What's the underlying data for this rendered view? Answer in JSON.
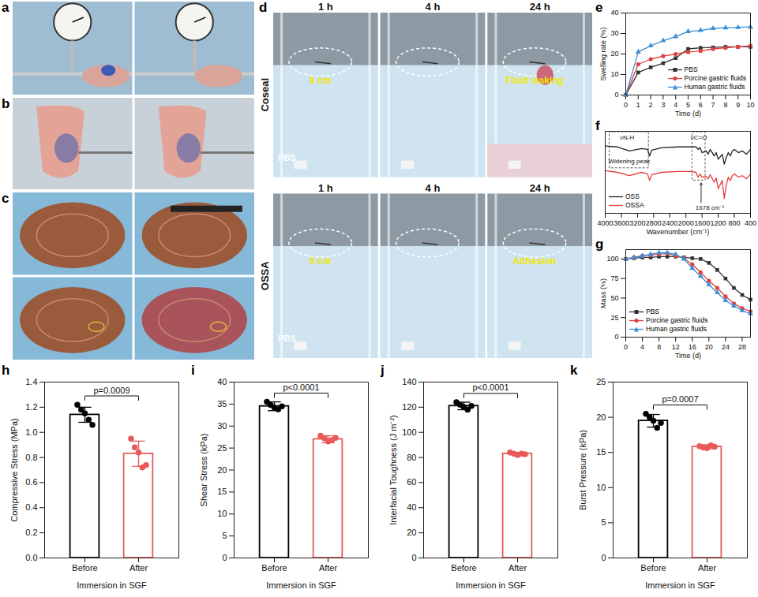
{
  "chart_data": [
    {
      "panel": "e",
      "type": "line",
      "x_label": "Time (d)",
      "y_label": "Swelling rate (%)",
      "x": [
        0,
        1,
        2,
        3,
        4,
        5,
        6,
        7,
        8,
        9,
        10
      ],
      "series": [
        {
          "name": "PBS",
          "color": "#333333",
          "marker": "square",
          "values": [
            0,
            11,
            13.5,
            15.5,
            18,
            22.5,
            23,
            23.2,
            23.5,
            23.5,
            23.5
          ]
        },
        {
          "name": "Porcine gastric fluids",
          "color": "#e0403f",
          "marker": "circle",
          "values": [
            0,
            15,
            17.5,
            19,
            20,
            21,
            21.5,
            22.5,
            23,
            23.5,
            24
          ]
        },
        {
          "name": "Human gastric fluids",
          "color": "#3d8fd6",
          "marker": "triangle",
          "values": [
            0,
            21,
            24,
            26.5,
            28.5,
            31,
            31.5,
            32.5,
            32.8,
            33,
            33.2
          ]
        }
      ],
      "xlim": [
        0,
        10
      ],
      "xticks": [
        0,
        1,
        2,
        3,
        4,
        5,
        6,
        7,
        8,
        9,
        10
      ],
      "ylim": [
        0,
        40
      ],
      "yticks": [
        0,
        10,
        20,
        30,
        40
      ],
      "legend": "bottom-right"
    },
    {
      "panel": "f",
      "type": "line",
      "x_label": "Wavenumber (cm⁻¹)",
      "x": [
        4000,
        3700,
        3400,
        3100,
        2950,
        2900,
        2850,
        2600,
        2200,
        1900,
        1750,
        1700,
        1650,
        1600,
        1500,
        1450,
        1400,
        1300,
        1250,
        1200,
        1100,
        1050,
        1000,
        950,
        900,
        850,
        800,
        700,
        600,
        500,
        400
      ],
      "series": [
        {
          "name": "OSS",
          "color": "#222222",
          "values": [
            82,
            81,
            76,
            79,
            78,
            70,
            77,
            80,
            81,
            81,
            81,
            78,
            80,
            74,
            76,
            72,
            78,
            70,
            74,
            66,
            72,
            60,
            68,
            74,
            70,
            76,
            78,
            74,
            76,
            72,
            78
          ]
        },
        {
          "name": "OSSA",
          "color": "#e0403f",
          "values": [
            52,
            50,
            46,
            50,
            48,
            40,
            47,
            50,
            51,
            51,
            50,
            44,
            48,
            44,
            45,
            42,
            47,
            38,
            43,
            30,
            40,
            18,
            35,
            44,
            40,
            46,
            48,
            44,
            46,
            42,
            48
          ]
        }
      ],
      "annotations": [
        "νN-H",
        "Widening peak",
        "νC=O",
        "1678 cm⁻¹"
      ],
      "xlim": [
        4000,
        400
      ],
      "xticks": [
        4000,
        3600,
        3200,
        2800,
        2400,
        2000,
        1600,
        1200,
        800,
        400
      ],
      "ylim": [
        0,
        100
      ],
      "tick_labels": "x",
      "legend": "bottom-left"
    },
    {
      "panel": "g",
      "type": "line",
      "x_label": "Time (d)",
      "y_label": "Mass (%)",
      "x": [
        0,
        2,
        4,
        6,
        8,
        10,
        12,
        14,
        16,
        18,
        20,
        22,
        24,
        26,
        28,
        30
      ],
      "series": [
        {
          "name": "PBS",
          "color": "#333333",
          "marker": "square",
          "values": [
            100,
            101,
            102,
            102,
            103,
            103,
            103,
            102,
            101,
            100,
            95,
            86,
            75,
            63,
            54,
            48
          ]
        },
        {
          "name": "Porcine gastric fluids",
          "color": "#e0403f",
          "marker": "circle",
          "values": [
            100,
            102,
            104,
            105,
            106,
            107,
            104,
            101,
            93,
            83,
            72,
            63,
            52,
            43,
            37,
            33
          ]
        },
        {
          "name": "Human gastric fluids",
          "color": "#3d8fd6",
          "marker": "triangle",
          "values": [
            100,
            102,
            104,
            106,
            108,
            108,
            106,
            100,
            88,
            78,
            67,
            57,
            47,
            40,
            34,
            30
          ]
        }
      ],
      "xlim": [
        0,
        30
      ],
      "xticks": [
        0,
        4,
        8,
        12,
        16,
        20,
        24,
        28
      ],
      "ylim": [
        0,
        112
      ],
      "yticks": [
        0,
        25,
        50,
        75,
        100
      ],
      "legend": "bottom-left"
    },
    {
      "panel": "h",
      "type": "bar",
      "x_label": "Immersion in SGF",
      "y_label": "Compressive Stress (MPa)",
      "categories": [
        "Before",
        "After"
      ],
      "values": [
        1.14,
        0.83
      ],
      "errors": [
        0.06,
        0.1
      ],
      "points": [
        [
          1.22,
          1.18,
          1.15,
          1.1,
          1.06
        ],
        [
          0.95,
          0.88,
          0.84,
          0.72,
          0.74
        ]
      ],
      "colors": [
        "#000000",
        "#e8595a"
      ],
      "p_value": "p=0.0009",
      "ylim": [
        0,
        1.4
      ],
      "yticks": [
        {
          "value": 0,
          "label": "0.0"
        },
        0.2,
        0.4,
        0.6,
        0.8,
        {
          "value": 1,
          "label": "1.0"
        },
        1.2,
        1.4
      ]
    },
    {
      "panel": "i",
      "type": "bar",
      "x_label": "Immersion in SGF",
      "y_label": "Shear Stress (kPa)",
      "categories": [
        "Before",
        "After"
      ],
      "values": [
        34.5,
        27
      ],
      "errors": [
        1,
        0.8
      ],
      "points": [
        [
          35.5,
          34.8,
          34.2,
          33.8,
          34.5
        ],
        [
          27.8,
          27.2,
          26.5,
          26.8,
          27.3
        ]
      ],
      "colors": [
        "#000000",
        "#e8595a"
      ],
      "p_value": "p<0.0001",
      "ylim": [
        0,
        40
      ],
      "yticks": [
        0,
        5,
        10,
        15,
        20,
        25,
        30,
        35,
        40
      ]
    },
    {
      "panel": "j",
      "type": "bar",
      "x_label": "Immersion in SGF",
      "y_label": "Interfacial Toughness (J m⁻²)",
      "categories": [
        "Before",
        "After"
      ],
      "values": [
        121,
        83
      ],
      "errors": [
        3,
        1
      ],
      "points": [
        [
          124,
          122,
          120,
          118,
          121
        ],
        [
          84,
          83,
          82,
          83,
          82.5
        ]
      ],
      "colors": [
        "#000000",
        "#e8595a"
      ],
      "p_value": "p<0.0001",
      "ylim": [
        0,
        140
      ],
      "yticks": [
        0,
        20,
        40,
        60,
        80,
        100,
        120,
        140
      ]
    },
    {
      "panel": "k",
      "type": "bar",
      "x_label": "Immersion in SGF",
      "y_label": "Burst Pressure (kPa)",
      "categories": [
        "Before",
        "After"
      ],
      "values": [
        19.5,
        15.8
      ],
      "errors": [
        0.9,
        0.3
      ],
      "points": [
        [
          20.5,
          20,
          19.5,
          18.5,
          19.2
        ],
        [
          15.9,
          15.7,
          15.6,
          16,
          15.8
        ]
      ],
      "colors": [
        "#000000",
        "#e8595a"
      ],
      "p_value": "p=0.0007",
      "ylim": [
        0,
        25
      ],
      "yticks": [
        0,
        5,
        10,
        15,
        20,
        25
      ]
    }
  ],
  "photo_panels": [
    {
      "panel": "a",
      "photos": [
        {},
        {}
      ]
    },
    {
      "panel": "b",
      "photos": [
        {},
        {}
      ]
    },
    {
      "panel": "c",
      "photos": [
        {},
        {},
        {},
        {}
      ]
    },
    {
      "panel": "d",
      "rows": [
        {
          "label": "Coseal",
          "photos": [
            {
              "time": "1 h",
              "annotation": "6 cm",
              "medium": "PBS"
            },
            {
              "time": "4 h"
            },
            {
              "time": "24 h",
              "annotation": "Fluid leaking"
            }
          ]
        },
        {
          "label": "OSSA",
          "photos": [
            {
              "time": "1 h",
              "annotation": "6 cm",
              "medium": "PBS"
            },
            {
              "time": "4 h"
            },
            {
              "time": "24 h",
              "annotation": "Adhesion"
            }
          ]
        }
      ]
    }
  ]
}
